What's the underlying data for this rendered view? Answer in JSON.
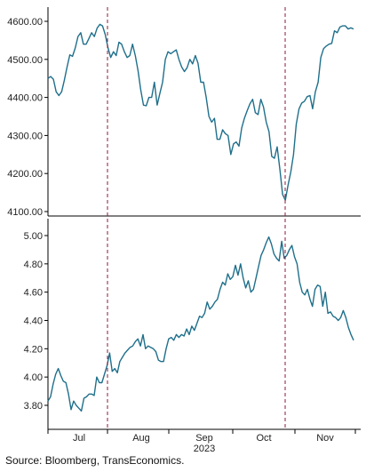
{
  "colors": {
    "series": "#1f6f8b",
    "event_line": "#8b1a3a",
    "axis": "#000000",
    "text": "#222222"
  },
  "source": "Source: Bloomberg, TransEconomics.",
  "chart_data": [
    {
      "type": "line",
      "panel": "top",
      "title": "",
      "xlabel": "",
      "ylabel": "",
      "ylim": [
        4100,
        4600
      ],
      "yticks": [
        "4100.00",
        "4200.00",
        "4300.00",
        "4400.00",
        "4500.00",
        "4600.00"
      ],
      "grid": false,
      "series": [
        {
          "values": [
            4450,
            4455,
            4448,
            4415,
            4405,
            4415,
            4445,
            4480,
            4512,
            4508,
            4530,
            4560,
            4570,
            4540,
            4540,
            4555,
            4570,
            4560,
            4582,
            4592,
            4588,
            4565,
            4530,
            4505,
            4520,
            4510,
            4545,
            4540,
            4520,
            4505,
            4510,
            4540,
            4510,
            4470,
            4420,
            4380,
            4378,
            4400,
            4400,
            4440,
            4380,
            4410,
            4440,
            4500,
            4520,
            4515,
            4520,
            4525,
            4500,
            4480,
            4468,
            4478,
            4500,
            4488,
            4510,
            4490,
            4440,
            4440,
            4400,
            4350,
            4335,
            4345,
            4290,
            4290,
            4315,
            4305,
            4300,
            4250,
            4278,
            4283,
            4272,
            4320,
            4345,
            4365,
            4383,
            4395,
            4360,
            4355,
            4395,
            4375,
            4335,
            4310,
            4245,
            4240,
            4270,
            4210,
            4145,
            4130,
            4170,
            4205,
            4250,
            4330,
            4370,
            4385,
            4390,
            4402,
            4405,
            4370,
            4415,
            4440,
            4505,
            4528,
            4535,
            4540,
            4542,
            4575,
            4570,
            4585,
            4588,
            4588,
            4580,
            4583,
            4580
          ]
        }
      ]
    },
    {
      "type": "line",
      "panel": "bottom",
      "title": "",
      "xlabel": "",
      "ylabel": "",
      "ylim": [
        3.7,
        5.05
      ],
      "yticks": [
        "3.80",
        "4.00",
        "4.20",
        "4.40",
        "4.60",
        "4.80",
        "5.00"
      ],
      "xticks": [
        "Jul",
        "Aug",
        "Sep",
        "Oct",
        "Nov"
      ],
      "year_label": "2023",
      "grid": false,
      "series": [
        {
          "values": [
            3.83,
            3.86,
            3.95,
            4.02,
            4.06,
            4.01,
            3.97,
            3.96,
            3.88,
            3.77,
            3.83,
            3.8,
            3.78,
            3.76,
            3.85,
            3.86,
            3.88,
            3.88,
            3.87,
            4.0,
            3.96,
            3.96,
            4.02,
            4.08,
            4.17,
            4.04,
            4.06,
            4.03,
            4.11,
            4.14,
            4.17,
            4.19,
            4.21,
            4.22,
            4.25,
            4.27,
            4.22,
            4.3,
            4.2,
            4.22,
            4.21,
            4.2,
            4.18,
            4.12,
            4.11,
            4.11,
            4.2,
            4.27,
            4.28,
            4.26,
            4.3,
            4.28,
            4.3,
            4.29,
            4.34,
            4.3,
            4.36,
            4.33,
            4.38,
            4.43,
            4.42,
            4.45,
            4.53,
            4.48,
            4.5,
            4.53,
            4.55,
            4.62,
            4.67,
            4.65,
            4.73,
            4.69,
            4.71,
            4.79,
            4.72,
            4.8,
            4.7,
            4.63,
            4.68,
            4.6,
            4.62,
            4.7,
            4.78,
            4.86,
            4.9,
            4.95,
            4.99,
            4.94,
            4.87,
            4.84,
            4.82,
            4.96,
            4.84,
            4.86,
            4.9,
            4.93,
            4.85,
            4.8,
            4.67,
            4.6,
            4.58,
            4.62,
            4.55,
            4.5,
            4.62,
            4.65,
            4.64,
            4.5,
            4.6,
            4.45,
            4.46,
            4.43,
            4.42,
            4.4,
            4.42,
            4.47,
            4.42,
            4.35,
            4.3,
            4.26
          ]
        }
      ]
    }
  ]
}
